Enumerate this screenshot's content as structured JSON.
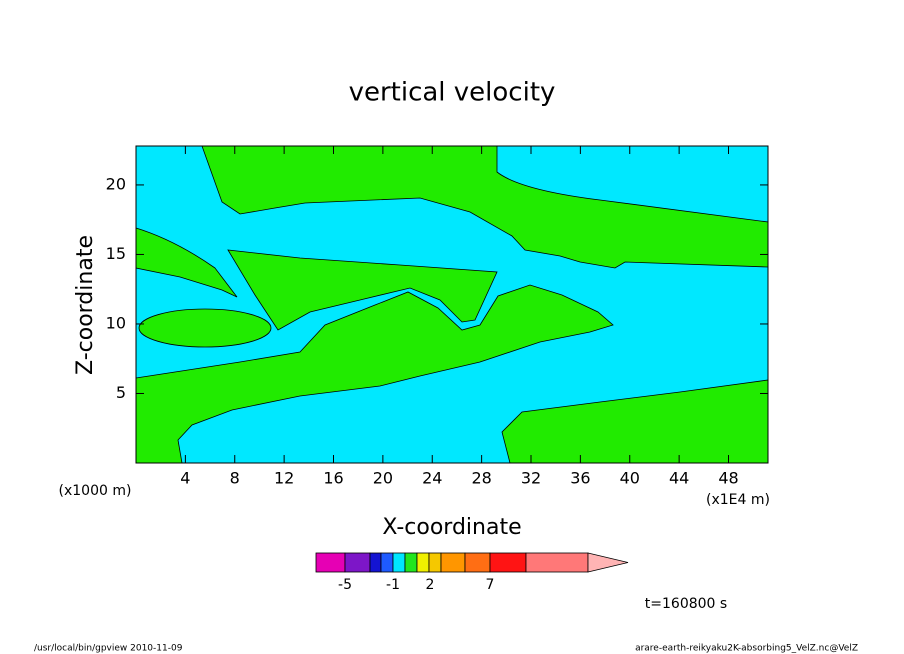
{
  "chart_data": {
    "type": "contour",
    "title": "vertical velocity",
    "xlabel": "X-coordinate",
    "ylabel": "Z-coordinate",
    "xunit": "(x1E4 m)",
    "yunit": "(x1000 m)",
    "annotation": "t=160800 s",
    "footer_left": "/usr/local/bin/gpview  2010-11-09",
    "footer_right": "arare-earth-reikyaku2K-absorbing5_VelZ.nc@VelZ",
    "xlim": [
      0,
      51.2
    ],
    "ylim": [
      0,
      22.8
    ],
    "xticks": [
      4,
      8,
      12,
      16,
      20,
      24,
      28,
      32,
      36,
      40,
      44,
      48
    ],
    "yticks": [
      5,
      10,
      15,
      20
    ],
    "colorbar": {
      "colors": [
        "#e600b4",
        "#7d16c8",
        "#1414d2",
        "#1e5aff",
        "#00e6ff",
        "#21e61e",
        "#f0f000",
        "#f5c800",
        "#ff9600",
        "#ff6e14",
        "#ff1414",
        "#ff7878",
        "#ffb4b4"
      ],
      "labels": [
        -5,
        -1,
        2,
        7
      ]
    }
  }
}
